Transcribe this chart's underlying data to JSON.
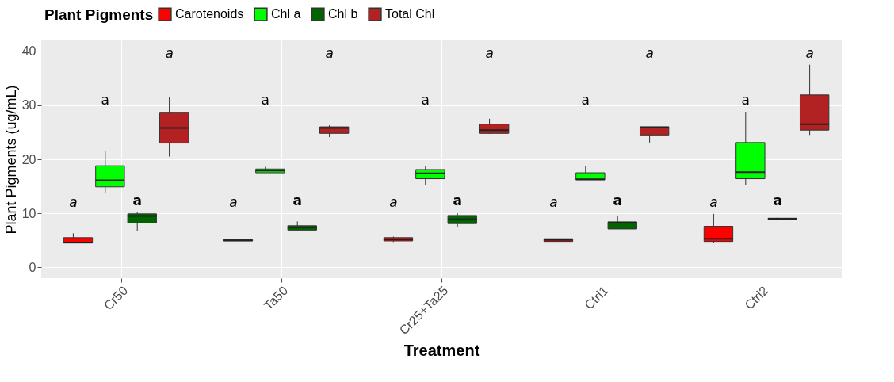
{
  "chart_data": {
    "type": "box",
    "xlabel": "Treatment",
    "ylabel": "Plant Pigments (ug/mL)",
    "legend_title": "Plant Pigments",
    "legend": "top",
    "categories": [
      "Cr50",
      "Ta50",
      "Cr25+Ta25",
      "Ctrl1",
      "Ctrl2"
    ],
    "ylim": [
      -2,
      42
    ],
    "yticks": [
      0,
      10,
      20,
      30,
      40
    ],
    "grid": true,
    "series": [
      {
        "name": "Carotenoids",
        "color": "#ff0000",
        "boxes": [
          {
            "low": 4.5,
            "q1": 4.5,
            "median": 4.6,
            "q3": 5.5,
            "high": 6.3
          },
          {
            "low": 4.9,
            "q1": 4.9,
            "median": 5.0,
            "q3": 5.1,
            "high": 5.3
          },
          {
            "low": 4.7,
            "q1": 4.9,
            "median": 5.2,
            "q3": 5.5,
            "high": 5.7
          },
          {
            "low": 4.8,
            "q1": 4.8,
            "median": 5.1,
            "q3": 5.3,
            "high": 5.3
          },
          {
            "low": 4.5,
            "q1": 4.8,
            "median": 5.3,
            "q3": 7.6,
            "high": 9.9
          }
        ]
      },
      {
        "name": "Chl a",
        "color": "#00ff00",
        "boxes": [
          {
            "low": 13.7,
            "q1": 14.9,
            "median": 16.1,
            "q3": 18.8,
            "high": 21.5
          },
          {
            "low": 17.5,
            "q1": 17.5,
            "median": 17.9,
            "q3": 18.2,
            "high": 18.6
          },
          {
            "low": 15.3,
            "q1": 16.4,
            "median": 17.4,
            "q3": 18.1,
            "high": 18.8
          },
          {
            "low": 16.2,
            "q1": 16.2,
            "median": 16.3,
            "q3": 17.5,
            "high": 18.8
          },
          {
            "low": 15.2,
            "q1": 16.4,
            "median": 17.6,
            "q3": 23.1,
            "high": 28.8
          }
        ]
      },
      {
        "name": "Chl b",
        "color": "#006400",
        "boxes": [
          {
            "low": 6.8,
            "q1": 8.2,
            "median": 9.5,
            "q3": 9.9,
            "high": 10.2
          },
          {
            "low": 6.9,
            "q1": 6.9,
            "median": 7.4,
            "q3": 7.7,
            "high": 8.5
          },
          {
            "low": 7.4,
            "q1": 8.1,
            "median": 8.9,
            "q3": 9.6,
            "high": 10.0
          },
          {
            "low": 7.1,
            "q1": 7.1,
            "median": 8.3,
            "q3": 8.4,
            "high": 9.6
          },
          {
            "low": 8.9,
            "q1": 8.9,
            "median": 9.0,
            "q3": 9.1,
            "high": 9.2
          }
        ]
      },
      {
        "name": "Total Chl",
        "color": "#b22222",
        "boxes": [
          {
            "low": 20.5,
            "q1": 23.0,
            "median": 25.8,
            "q3": 28.7,
            "high": 31.5
          },
          {
            "low": 24.1,
            "q1": 24.8,
            "median": 25.8,
            "q3": 26.0,
            "high": 26.3
          },
          {
            "low": 24.7,
            "q1": 24.8,
            "median": 25.4,
            "q3": 26.5,
            "high": 27.5
          },
          {
            "low": 23.1,
            "q1": 24.5,
            "median": 25.9,
            "q3": 26.0,
            "high": 26.0
          },
          {
            "low": 24.5,
            "q1": 25.4,
            "median": 26.5,
            "q3": 31.9,
            "high": 37.5
          }
        ]
      }
    ],
    "annotations": [
      "a",
      "a",
      "a",
      "a",
      "a",
      "a",
      "a",
      "a",
      "a",
      "a",
      "a",
      "a",
      "a",
      "a",
      "a",
      "a",
      "a",
      "a",
      "a",
      "a"
    ]
  }
}
